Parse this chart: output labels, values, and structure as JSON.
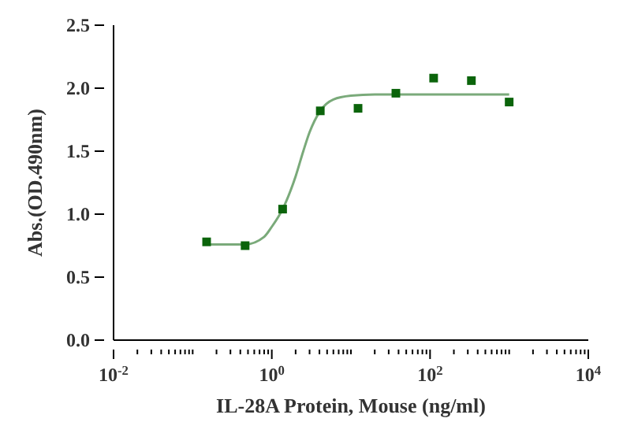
{
  "chart_data": {
    "type": "scatter",
    "xlabel": "IL-28A Protein, Mouse  (ng/ml)",
    "ylabel": "Abs.(OD.490nm)",
    "log": "x",
    "grid": false,
    "marker": "square",
    "xlim": [
      0.01,
      10000
    ],
    "xticks": [
      {
        "value": 0.01,
        "label": "10$^{-2}$"
      },
      {
        "value": 0.02,
        "label": null
      },
      {
        "value": 0.03,
        "label": null
      },
      {
        "value": 0.04,
        "label": null
      },
      {
        "value": 0.05,
        "label": null
      },
      {
        "value": 0.06,
        "label": null
      },
      {
        "value": 0.07,
        "label": null
      },
      {
        "value": 0.08,
        "label": null
      },
      {
        "value": 0.09,
        "label": null
      },
      {
        "value": 0.1,
        "label": null
      },
      {
        "value": 0.2,
        "label": null
      },
      {
        "value": 0.3,
        "label": null
      },
      {
        "value": 0.4,
        "label": null
      },
      {
        "value": 0.5,
        "label": null
      },
      {
        "value": 0.6,
        "label": null
      },
      {
        "value": 0.7,
        "label": null
      },
      {
        "value": 0.8,
        "label": null
      },
      {
        "value": 0.9,
        "label": null
      },
      {
        "value": 1,
        "label": "10$^{0}$"
      },
      {
        "value": 2,
        "label": null
      },
      {
        "value": 3,
        "label": null
      },
      {
        "value": 4,
        "label": null
      },
      {
        "value": 5,
        "label": null
      },
      {
        "value": 6,
        "label": null
      },
      {
        "value": 7,
        "label": null
      },
      {
        "value": 8,
        "label": null
      },
      {
        "value": 9,
        "label": null
      },
      {
        "value": 10,
        "label": null
      },
      {
        "value": 20,
        "label": null
      },
      {
        "value": 30,
        "label": null
      },
      {
        "value": 40,
        "label": null
      },
      {
        "value": 50,
        "label": null
      },
      {
        "value": 60,
        "label": null
      },
      {
        "value": 70,
        "label": null
      },
      {
        "value": 80,
        "label": null
      },
      {
        "value": 90,
        "label": null
      },
      {
        "value": 100,
        "label": "10$^{2}$"
      },
      {
        "value": 200,
        "label": null
      },
      {
        "value": 300,
        "label": null
      },
      {
        "value": 400,
        "label": null
      },
      {
        "value": 500,
        "label": null
      },
      {
        "value": 600,
        "label": null
      },
      {
        "value": 700,
        "label": null
      },
      {
        "value": 800,
        "label": null
      },
      {
        "value": 900,
        "label": null
      },
      {
        "value": 1000,
        "label": null
      },
      {
        "value": 2000,
        "label": null
      },
      {
        "value": 3000,
        "label": null
      },
      {
        "value": 4000,
        "label": null
      },
      {
        "value": 5000,
        "label": null
      },
      {
        "value": 6000,
        "label": null
      },
      {
        "value": 7000,
        "label": null
      },
      {
        "value": 8000,
        "label": null
      },
      {
        "value": 9000,
        "label": null
      },
      {
        "value": 10000,
        "label": "10$^{4}$"
      }
    ],
    "ylim": [
      0,
      2.5
    ],
    "yticks": [
      {
        "value": 0,
        "label": "0.0"
      },
      {
        "value": 0.5,
        "label": "0.5"
      },
      {
        "value": 1,
        "label": "1.0"
      },
      {
        "value": 1.5,
        "label": "1.5"
      },
      {
        "value": 2,
        "label": "2.0"
      },
      {
        "value": 2.5,
        "label": "2.5"
      }
    ],
    "series": [
      {
        "color": "#0b640b",
        "x": [
          0.15,
          0.46,
          1.37,
          4.1,
          12.3,
          37,
          111,
          333,
          1000
        ],
        "values": [
          0.78,
          0.75,
          1.04,
          1.82,
          1.84,
          1.96,
          2.08,
          2.06,
          1.89
        ]
      },
      {
        "type": "line",
        "color": "#7aaa7a",
        "marker": "none",
        "x": [
          0.15,
          0.46,
          0.8,
          1.0,
          1.37,
          2,
          2.5,
          3,
          4.1,
          6,
          10,
          20,
          100,
          1000
        ],
        "values": [
          0.76,
          0.76,
          0.82,
          0.9,
          1.04,
          1.3,
          1.5,
          1.65,
          1.82,
          1.91,
          1.94,
          1.95,
          1.95,
          1.95
        ]
      }
    ]
  }
}
